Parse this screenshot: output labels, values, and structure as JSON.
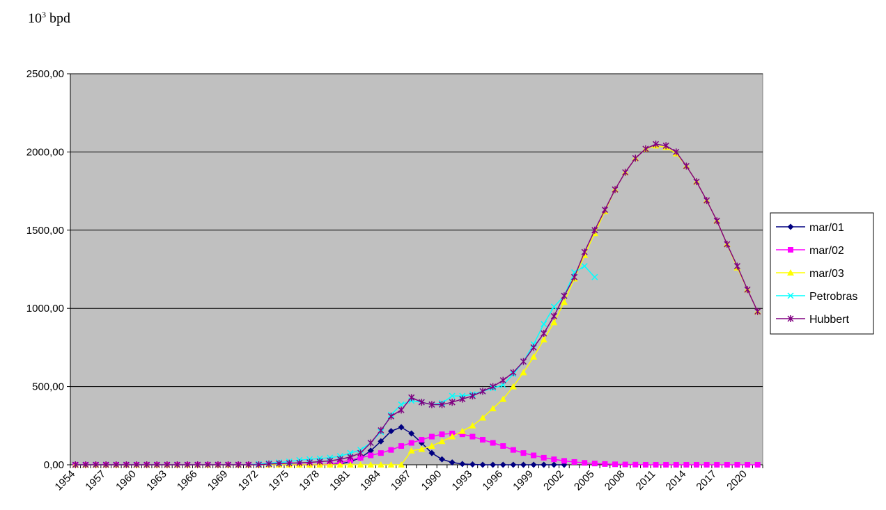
{
  "chart_data": {
    "type": "line",
    "title": "",
    "ylabel_base": "10",
    "ylabel_exp": "3",
    "ylabel_unit": "bpd",
    "xlabel": "",
    "ylim": [
      0,
      2500
    ],
    "y_ticks": [
      "0,00",
      "500,00",
      "1000,00",
      "1500,00",
      "2000,00",
      "2500,00"
    ],
    "y_tick_values": [
      0,
      500,
      1000,
      1500,
      2000,
      2500
    ],
    "x_start": 1954,
    "x_end": 2021,
    "x_tick_labels": [
      "1954",
      "1957",
      "1960",
      "1963",
      "1966",
      "1969",
      "1972",
      "1975",
      "1978",
      "1981",
      "1984",
      "1987",
      "1990",
      "1993",
      "1996",
      "1999",
      "2002",
      "2005",
      "2008",
      "2011",
      "2014",
      "2017",
      "2020"
    ],
    "grid": true,
    "plot_background": "#c0c0c0",
    "legend_position": "right",
    "series": [
      {
        "name": "mar/01",
        "color": "#000080",
        "marker": "diamond",
        "x": [
          1954,
          1955,
          1956,
          1957,
          1958,
          1959,
          1960,
          1961,
          1962,
          1963,
          1964,
          1965,
          1966,
          1967,
          1968,
          1969,
          1970,
          1971,
          1972,
          1973,
          1974,
          1975,
          1976,
          1977,
          1978,
          1979,
          1980,
          1981,
          1982,
          1983,
          1984,
          1985,
          1986,
          1987,
          1988,
          1989,
          1990,
          1991,
          1992,
          1993,
          1994,
          1995,
          1996,
          1997,
          1998,
          1999,
          2000,
          2001,
          2002
        ],
        "values": [
          0,
          0,
          0,
          0,
          0,
          0,
          0,
          0,
          0,
          0,
          0,
          0,
          0,
          0,
          0,
          0,
          0,
          0,
          0,
          0,
          0,
          0,
          0,
          0,
          0,
          0,
          5,
          20,
          45,
          90,
          150,
          215,
          240,
          200,
          140,
          75,
          35,
          15,
          5,
          2,
          0,
          0,
          0,
          0,
          0,
          0,
          0,
          0,
          0
        ]
      },
      {
        "name": "mar/02",
        "color": "#ff00ff",
        "marker": "square",
        "x": [
          1954,
          1955,
          1956,
          1957,
          1958,
          1959,
          1960,
          1961,
          1962,
          1963,
          1964,
          1965,
          1966,
          1967,
          1968,
          1969,
          1970,
          1971,
          1972,
          1973,
          1974,
          1975,
          1976,
          1977,
          1978,
          1979,
          1980,
          1981,
          1982,
          1983,
          1984,
          1985,
          1986,
          1987,
          1988,
          1989,
          1990,
          1991,
          1992,
          1993,
          1994,
          1995,
          1996,
          1997,
          1998,
          1999,
          2000,
          2001,
          2002,
          2003,
          2004,
          2005,
          2006,
          2007,
          2008,
          2009,
          2010,
          2011,
          2012,
          2013,
          2014,
          2015,
          2016,
          2017,
          2018,
          2019,
          2020,
          2021
        ],
        "values": [
          0,
          0,
          0,
          0,
          0,
          0,
          0,
          0,
          0,
          0,
          0,
          0,
          0,
          0,
          0,
          0,
          0,
          0,
          0,
          0,
          0,
          0,
          0,
          0,
          0,
          5,
          15,
          30,
          45,
          60,
          75,
          95,
          120,
          140,
          160,
          180,
          195,
          200,
          195,
          180,
          160,
          140,
          120,
          95,
          75,
          60,
          45,
          35,
          25,
          18,
          12,
          8,
          5,
          3,
          2,
          1,
          0,
          0,
          0,
          0,
          0,
          0,
          0,
          0,
          0,
          0,
          0,
          0
        ]
      },
      {
        "name": "mar/03",
        "color": "#ffff00",
        "marker": "triangle",
        "x": [
          1954,
          1955,
          1956,
          1957,
          1958,
          1959,
          1960,
          1961,
          1962,
          1963,
          1964,
          1965,
          1966,
          1967,
          1968,
          1969,
          1970,
          1971,
          1972,
          1973,
          1974,
          1975,
          1976,
          1977,
          1978,
          1979,
          1980,
          1981,
          1982,
          1983,
          1984,
          1985,
          1986,
          1987,
          1988,
          1989,
          1990,
          1991,
          1992,
          1993,
          1994,
          1995,
          1996,
          1997,
          1998,
          1999,
          2000,
          2001,
          2002,
          2003,
          2004,
          2005,
          2006,
          2007,
          2008,
          2009,
          2010,
          2011,
          2012,
          2013,
          2014,
          2015,
          2016,
          2017,
          2018,
          2019,
          2020,
          2021
        ],
        "values": [
          0,
          0,
          0,
          0,
          0,
          0,
          0,
          0,
          0,
          0,
          0,
          0,
          0,
          0,
          0,
          0,
          0,
          0,
          0,
          0,
          0,
          0,
          0,
          0,
          0,
          0,
          0,
          0,
          0,
          0,
          0,
          0,
          0,
          90,
          100,
          120,
          150,
          180,
          215,
          250,
          300,
          360,
          420,
          500,
          590,
          690,
          800,
          910,
          1040,
          1190,
          1340,
          1480,
          1620,
          1760,
          1870,
          1960,
          2020,
          2040,
          2030,
          1990,
          1910,
          1810,
          1690,
          1560,
          1410,
          1260,
          1120,
          980
        ]
      },
      {
        "name": "Petrobras",
        "color": "#00ffff",
        "marker": "x",
        "x": [
          1954,
          1955,
          1956,
          1957,
          1958,
          1959,
          1960,
          1961,
          1962,
          1963,
          1964,
          1965,
          1966,
          1967,
          1968,
          1969,
          1970,
          1971,
          1972,
          1973,
          1974,
          1975,
          1976,
          1977,
          1978,
          1979,
          1980,
          1981,
          1982,
          1983,
          1984,
          1985,
          1986,
          1987,
          1988,
          1989,
          1990,
          1991,
          1992,
          1993,
          1994,
          1995,
          1996,
          1997,
          1998,
          1999,
          2000,
          2001,
          2002,
          2003,
          2004,
          2005
        ],
        "values": [
          0,
          0,
          0,
          0,
          0,
          0,
          0,
          0,
          0,
          0,
          0,
          0,
          0,
          0,
          0,
          0,
          0,
          0,
          5,
          10,
          15,
          20,
          30,
          35,
          40,
          45,
          55,
          75,
          95,
          140,
          210,
          320,
          385,
          410,
          400,
          385,
          395,
          440,
          440,
          450,
          470,
          490,
          510,
          580,
          660,
          770,
          900,
          1010,
          1080,
          1230,
          1270,
          1200
        ]
      },
      {
        "name": "Hubbert",
        "color": "#800080",
        "marker": "star",
        "x": [
          1954,
          1955,
          1956,
          1957,
          1958,
          1959,
          1960,
          1961,
          1962,
          1963,
          1964,
          1965,
          1966,
          1967,
          1968,
          1969,
          1970,
          1971,
          1972,
          1973,
          1974,
          1975,
          1976,
          1977,
          1978,
          1979,
          1980,
          1981,
          1982,
          1983,
          1984,
          1985,
          1986,
          1987,
          1988,
          1989,
          1990,
          1991,
          1992,
          1993,
          1994,
          1995,
          1996,
          1997,
          1998,
          1999,
          2000,
          2001,
          2002,
          2003,
          2004,
          2005,
          2006,
          2007,
          2008,
          2009,
          2010,
          2011,
          2012,
          2013,
          2014,
          2015,
          2016,
          2017,
          2018,
          2019,
          2020,
          2021
        ],
        "values": [
          0,
          0,
          0,
          0,
          0,
          0,
          0,
          0,
          0,
          0,
          0,
          0,
          0,
          0,
          0,
          0,
          0,
          0,
          0,
          5,
          8,
          10,
          12,
          15,
          20,
          25,
          35,
          50,
          75,
          140,
          220,
          310,
          350,
          430,
          400,
          385,
          385,
          400,
          420,
          440,
          470,
          500,
          540,
          590,
          660,
          750,
          840,
          950,
          1080,
          1200,
          1360,
          1500,
          1630,
          1760,
          1870,
          1960,
          2020,
          2050,
          2040,
          2000,
          1910,
          1810,
          1690,
          1560,
          1410,
          1270,
          1120,
          980
        ]
      }
    ]
  }
}
